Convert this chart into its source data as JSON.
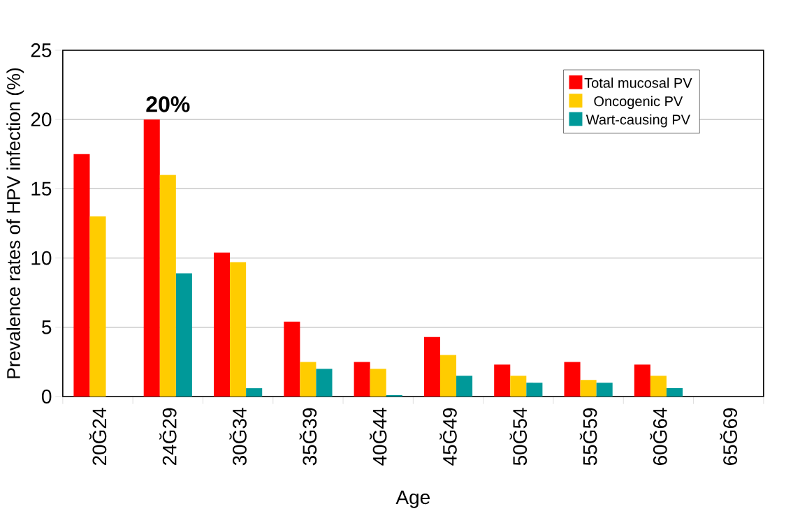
{
  "chart_data": {
    "type": "bar",
    "xlabel": "Age",
    "ylabel": "Prevalence rates of HPV infection (%)",
    "categories": [
      "20Ğ24",
      "24Ğ29",
      "30Ğ34",
      "35Ğ39",
      "40Ğ44",
      "45Ğ49",
      "50Ğ54",
      "55Ğ59",
      "60Ğ64",
      "65Ğ69"
    ],
    "series": [
      {
        "name": "Total mucosal PV",
        "color": "#ff0000",
        "values": [
          17.5,
          20.0,
          10.4,
          5.4,
          2.5,
          4.3,
          2.3,
          2.5,
          2.3,
          null
        ]
      },
      {
        "name": "Oncogenic PV",
        "color": "#ffcc00",
        "values": [
          13.0,
          16.0,
          9.7,
          2.5,
          2.0,
          3.0,
          1.5,
          1.2,
          1.5,
          null
        ]
      },
      {
        "name": "Wart-causing PV",
        "color": "#009999",
        "values": [
          null,
          8.9,
          0.6,
          2.0,
          0.1,
          1.5,
          1.0,
          1.0,
          0.6,
          null
        ]
      }
    ],
    "ylim": [
      0,
      25
    ],
    "yticks": [
      0,
      5,
      10,
      15,
      20,
      25
    ],
    "grid": "y",
    "legend": "top right",
    "annotations": [
      "20%"
    ]
  }
}
